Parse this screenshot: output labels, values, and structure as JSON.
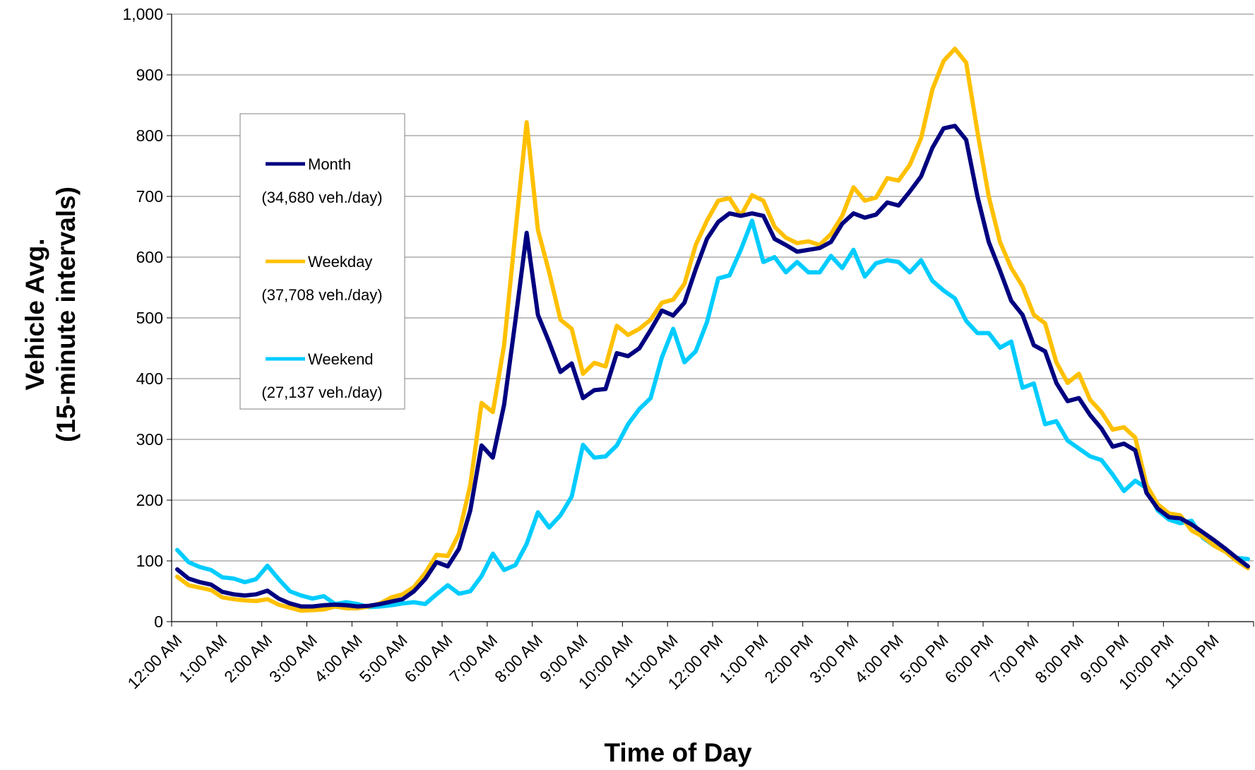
{
  "chart_data": {
    "type": "line",
    "xlabel": "Time of Day",
    "ylabel": "Vehicle Avg.",
    "ylabel_line2": "(15-minute intervals)",
    "ylim": [
      0,
      1000
    ],
    "yticks": [
      "0",
      "100",
      "200",
      "300",
      "400",
      "500",
      "600",
      "700",
      "800",
      "900",
      "1,000"
    ],
    "ytick_values": [
      0,
      100,
      200,
      300,
      400,
      500,
      600,
      700,
      800,
      900,
      1000
    ],
    "x_interval": "15 minutes",
    "x_points": 96,
    "x_tick_labels": [
      "12:00 AM",
      "1:00 AM",
      "2:00 AM",
      "3:00 AM",
      "4:00 AM",
      "5:00 AM",
      "6:00 AM",
      "7:00 AM",
      "8:00 AM",
      "9:00 AM",
      "10:00 AM",
      "11:00 AM",
      "12:00 PM",
      "1:00 PM",
      "2:00 PM",
      "3:00 PM",
      "4:00 PM",
      "5:00 PM",
      "6:00 PM",
      "7:00 PM",
      "8:00 PM",
      "9:00 PM",
      "10:00 PM",
      "11:00 PM"
    ],
    "grid": "horizontal",
    "legend_position": "upper-left",
    "series": [
      {
        "name": "Month",
        "note": "(34,680 veh./day)",
        "color": "#000080",
        "values": [
          86,
          71,
          65,
          61,
          49,
          45,
          43,
          45,
          51,
          38,
          30,
          25,
          25,
          27,
          28,
          27,
          25,
          26,
          29,
          33,
          37,
          50,
          70,
          98,
          91,
          120,
          183,
          290,
          270,
          357,
          495,
          640,
          505,
          460,
          411,
          425,
          368,
          381,
          383,
          442,
          437,
          450,
          480,
          512,
          504,
          525,
          580,
          630,
          658,
          672,
          668,
          672,
          668,
          630,
          620,
          609,
          612,
          615,
          625,
          655,
          672,
          665,
          670,
          690,
          685,
          708,
          733,
          780,
          812,
          816,
          793,
          700,
          625,
          578,
          528,
          505,
          455,
          445,
          393,
          363,
          368,
          340,
          318,
          288,
          293,
          282,
          212,
          186,
          172,
          170,
          160,
          147,
          134,
          120,
          105,
          91
        ]
      },
      {
        "name": "Weekday",
        "note": "(37,708 veh./day)",
        "color": "#FFC000",
        "values": [
          74,
          60,
          56,
          52,
          40,
          37,
          35,
          34,
          37,
          28,
          23,
          18,
          19,
          20,
          25,
          22,
          22,
          25,
          30,
          40,
          45,
          57,
          80,
          110,
          108,
          145,
          225,
          360,
          345,
          455,
          640,
          822,
          645,
          575,
          497,
          482,
          408,
          426,
          420,
          487,
          472,
          482,
          497,
          525,
          530,
          556,
          620,
          660,
          693,
          697,
          668,
          702,
          693,
          650,
          632,
          623,
          626,
          620,
          638,
          668,
          715,
          693,
          698,
          730,
          726,
          752,
          796,
          876,
          923,
          943,
          920,
          806,
          700,
          625,
          582,
          552,
          505,
          491,
          427,
          393,
          408,
          365,
          345,
          316,
          320,
          303,
          225,
          193,
          178,
          175,
          150,
          140,
          125,
          115,
          100,
          88
        ]
      },
      {
        "name": "Weekend",
        "note": "(27,137 veh./day)",
        "color": "#00CCFF",
        "values": [
          118,
          98,
          90,
          85,
          73,
          71,
          65,
          70,
          92,
          70,
          50,
          43,
          38,
          42,
          29,
          32,
          29,
          24,
          25,
          27,
          30,
          32,
          29,
          45,
          60,
          46,
          50,
          75,
          112,
          85,
          93,
          128,
          180,
          155,
          175,
          206,
          291,
          270,
          272,
          290,
          325,
          350,
          368,
          435,
          482,
          427,
          445,
          493,
          565,
          570,
          612,
          660,
          592,
          600,
          575,
          592,
          575,
          575,
          602,
          582,
          612,
          568,
          590,
          595,
          592,
          575,
          595,
          561,
          545,
          532,
          495,
          475,
          475,
          451,
          461,
          385,
          392,
          325,
          330,
          298,
          285,
          272,
          266,
          242,
          215,
          232,
          220,
          183,
          168,
          162,
          166,
          138,
          125,
          120,
          105,
          103
        ]
      }
    ]
  }
}
